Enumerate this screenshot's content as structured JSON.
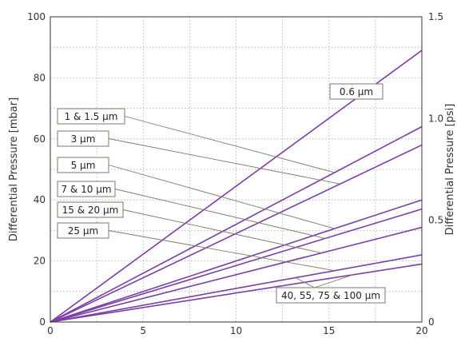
{
  "chart_data": {
    "type": "line",
    "title": "",
    "xlabel": "",
    "ylabel": "Differential Pressure [mbar]",
    "y2label": "Differential Pressure [psi]",
    "xlim": [
      0,
      20
    ],
    "ylim": [
      0,
      100
    ],
    "y2lim": [
      0,
      1.5
    ],
    "xticks": [
      "0",
      "5",
      "10",
      "15",
      "20"
    ],
    "yticks": [
      "0",
      "20",
      "40",
      "60",
      "80",
      "100"
    ],
    "y2ticks": [
      "0",
      "0.5",
      "1.0",
      "1.5"
    ],
    "grid": true,
    "series": [
      {
        "name": "0.6 µm",
        "x": [
          0,
          20
        ],
        "y": [
          0,
          89
        ]
      },
      {
        "name": "1 & 1.5 µm",
        "x": [
          0,
          20
        ],
        "y": [
          0,
          64
        ]
      },
      {
        "name": "3 µm",
        "x": [
          0,
          20
        ],
        "y": [
          0,
          58
        ]
      },
      {
        "name": "5 µm",
        "x": [
          0,
          20
        ],
        "y": [
          0,
          40
        ]
      },
      {
        "name": "7 & 10 µm",
        "x": [
          0,
          20
        ],
        "y": [
          0,
          37
        ]
      },
      {
        "name": "15 & 20 µm",
        "x": [
          0,
          20
        ],
        "y": [
          0,
          31
        ]
      },
      {
        "name": "25 µm",
        "x": [
          0,
          20
        ],
        "y": [
          0,
          22
        ]
      },
      {
        "name": "40, 55, 75 & 100 µm",
        "x": [
          0,
          20
        ],
        "y": [
          0,
          19
        ]
      }
    ],
    "annotations": [
      {
        "text": "0.6 µm",
        "series": 0
      },
      {
        "text": "1 & 1.5 µm",
        "series": 1
      },
      {
        "text": "3 µm",
        "series": 2
      },
      {
        "text": "5 µm",
        "series": 3
      },
      {
        "text": "7 & 10 µm",
        "series": 4
      },
      {
        "text": "15 & 20 µm",
        "series": 5
      },
      {
        "text": "25 µm",
        "series": 6
      },
      {
        "text": "40, 55, 75 & 100 µm",
        "series": [
          6,
          7
        ]
      }
    ],
    "colors": {
      "series": "#7a3ea6",
      "leader": "#7a7a6a",
      "text": "#333333"
    }
  }
}
